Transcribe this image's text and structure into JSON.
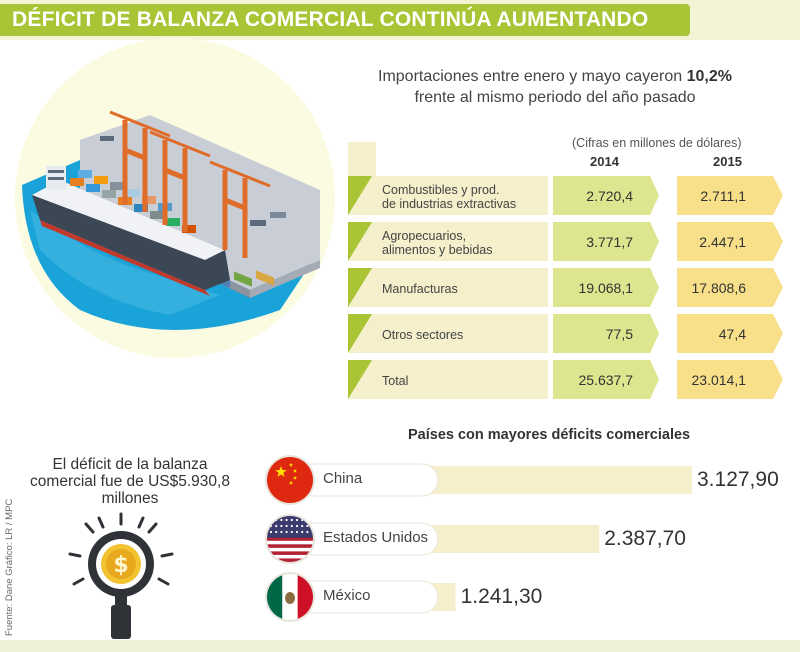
{
  "title": "DÉFICIT DE BALANZA COMERCIAL CONTINÚA AUMENTANDO",
  "subtitle": {
    "line1_prefix": "Importaciones entre enero y mayo  cayeron ",
    "line1_highlight": "10,2%",
    "line2": "frente al mismo periodo del año pasado"
  },
  "credit": "Fuente: Dane  Gráfico: LR / MPC",
  "deficit_note": "El déficit de la balanza comercial fue de US$5.930,8 millones",
  "colors": {
    "accent": "#a9c435",
    "green_cell": "#dde58e",
    "yellow_cell": "#f7e089",
    "cream": "#f5efcc",
    "sea": "#1aa3d8"
  },
  "chart_data": [
    {
      "type": "table",
      "title": "",
      "units_note": "(Cifras en millones de dólares)",
      "columns": [
        "2014",
        "2015"
      ],
      "rows": [
        {
          "label": "Combustibles y prod. de industrias extractivas",
          "label_lines": [
            "Combustibles y prod.",
            "de industrias extractivas"
          ],
          "values": [
            "2.720,4",
            "2.711,1"
          ]
        },
        {
          "label": "Agropecuarios, alimentos y bebidas",
          "label_lines": [
            "Agropecuarios,",
            "alimentos y bebidas"
          ],
          "values": [
            "3.771,7",
            "2.447,1"
          ]
        },
        {
          "label": "Manufacturas",
          "label_lines": [
            "Manufacturas"
          ],
          "values": [
            "19.068,1",
            "17.808,6"
          ]
        },
        {
          "label": "Otros sectores",
          "label_lines": [
            "Otros sectores"
          ],
          "values": [
            "77,5",
            "47,4"
          ]
        },
        {
          "label": "Total",
          "label_lines": [
            "Total"
          ],
          "values": [
            "25.637,7",
            "23.014,1"
          ]
        }
      ]
    },
    {
      "type": "bar",
      "title": "Países con mayores déficits comerciales",
      "categories": [
        "China",
        "Estados Unidos",
        "México"
      ],
      "values": [
        3127.9,
        2387.7,
        1241.3
      ],
      "value_labels": [
        "3.127,90",
        "2.387,70",
        "1.241,30"
      ],
      "flags": [
        "china-flag-icon",
        "usa-flag-icon",
        "mexico-flag-icon"
      ],
      "xlim": [
        0,
        3127.9
      ]
    }
  ]
}
